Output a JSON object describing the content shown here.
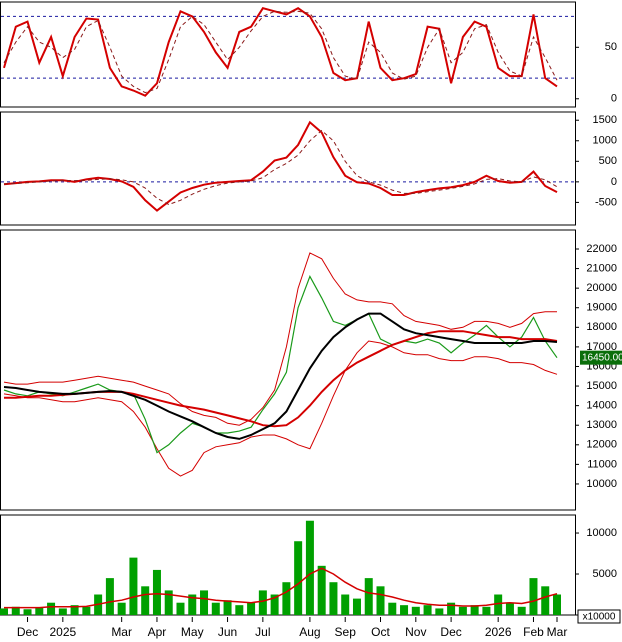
{
  "chart_data": [
    {
      "type": "line",
      "ylim": [
        -8,
        94
      ],
      "yticks": [
        0,
        50
      ],
      "guide_lines": [
        20,
        80
      ],
      "series": [
        {
          "color": "#d40000",
          "width": 2,
          "values": [
            30,
            70,
            75,
            35,
            60,
            22,
            60,
            78,
            77,
            30,
            12,
            8,
            3,
            15,
            55,
            85,
            80,
            65,
            45,
            30,
            65,
            70,
            88,
            85,
            82,
            88,
            80,
            60,
            25,
            18,
            20,
            75,
            30,
            18,
            20,
            24,
            70,
            68,
            15,
            60,
            75,
            70,
            30,
            22,
            22,
            82,
            20,
            12
          ]
        },
        {
          "color": "#8b1a1a",
          "dash": true,
          "width": 1,
          "values": [
            35,
            55,
            70,
            55,
            50,
            40,
            48,
            70,
            76,
            50,
            22,
            12,
            6,
            10,
            38,
            70,
            80,
            72,
            55,
            38,
            50,
            66,
            80,
            85,
            84,
            85,
            83,
            68,
            40,
            22,
            19,
            55,
            45,
            25,
            19,
            22,
            50,
            68,
            35,
            45,
            68,
            72,
            45,
            27,
            22,
            60,
            40,
            18
          ]
        }
      ]
    },
    {
      "type": "line",
      "ylim": [
        -1050,
        1700
      ],
      "yticks": [
        -500,
        0,
        500,
        1000,
        1500
      ],
      "guide_lines": [
        0
      ],
      "series": [
        {
          "color": "#d40000",
          "width": 2,
          "values": [
            -60,
            -30,
            0,
            10,
            40,
            40,
            0,
            60,
            100,
            70,
            10,
            -120,
            -450,
            -700,
            -480,
            -260,
            -150,
            -70,
            -20,
            0,
            20,
            40,
            250,
            520,
            590,
            900,
            1450,
            1200,
            600,
            150,
            -10,
            -40,
            -150,
            -320,
            -320,
            -250,
            -200,
            -160,
            -130,
            -80,
            0,
            150,
            20,
            -20,
            0,
            250,
            -100,
            -250
          ]
        },
        {
          "color": "#8b1a1a",
          "dash": true,
          "width": 1,
          "values": [
            -50,
            -40,
            -20,
            0,
            20,
            35,
            30,
            35,
            60,
            75,
            50,
            0,
            -150,
            -400,
            -550,
            -450,
            -300,
            -180,
            -90,
            -30,
            0,
            20,
            100,
            300,
            450,
            650,
            1000,
            1250,
            1000,
            500,
            150,
            0,
            -80,
            -200,
            -280,
            -280,
            -240,
            -200,
            -160,
            -110,
            -50,
            60,
            80,
            20,
            0,
            120,
            50,
            -120
          ]
        }
      ]
    },
    {
      "type": "line",
      "ylim": [
        8670,
        22970
      ],
      "yticks": [
        10000,
        11000,
        12000,
        13000,
        14000,
        15000,
        16000,
        17000,
        18000,
        19000,
        20000,
        21000,
        22000
      ],
      "last_price": {
        "value": 16450,
        "label": "16450.00"
      },
      "series": [
        {
          "color": "#d40000",
          "width": 1,
          "values": [
            15200,
            15100,
            15100,
            15200,
            15200,
            15200,
            15300,
            15400,
            15500,
            15400,
            15300,
            15200,
            15000,
            14800,
            14600,
            14100,
            13700,
            13500,
            13400,
            13100,
            13000,
            13300,
            13900,
            14800,
            17000,
            20000,
            21800,
            21500,
            20500,
            19700,
            19400,
            19300,
            19300,
            19200,
            18600,
            18300,
            18200,
            18100,
            17900,
            18000,
            18300,
            18300,
            18200,
            18000,
            18200,
            18700,
            18800,
            18800
          ]
        },
        {
          "color": "#d40000",
          "width": 1,
          "values": [
            14600,
            14500,
            14400,
            14400,
            14300,
            14200,
            14200,
            14300,
            14400,
            14300,
            14200,
            13700,
            12900,
            11800,
            10800,
            10400,
            10700,
            11600,
            11900,
            12000,
            12100,
            12400,
            12500,
            12500,
            12300,
            12000,
            11800,
            13100,
            14500,
            15800,
            16700,
            17300,
            17200,
            17000,
            16700,
            16600,
            16600,
            16400,
            16300,
            16300,
            16500,
            16500,
            16400,
            16200,
            16200,
            16100,
            15800,
            15600
          ]
        },
        {
          "color": "#1a9a1a",
          "width": 1.2,
          "values": [
            14800,
            14600,
            14500,
            14700,
            14600,
            14500,
            14700,
            14900,
            15100,
            14800,
            14700,
            14600,
            13300,
            11600,
            12000,
            12600,
            13100,
            12900,
            12600,
            12600,
            12700,
            12900,
            13800,
            14600,
            15700,
            19000,
            20600,
            19500,
            18300,
            18100,
            18400,
            18700,
            17400,
            17100,
            17300,
            17200,
            17400,
            17200,
            16700,
            17200,
            17600,
            18100,
            17500,
            17000,
            17500,
            18500,
            17300,
            16450
          ]
        },
        {
          "color": "#d40000",
          "width": 2,
          "values": [
            14400,
            14400,
            14450,
            14500,
            14500,
            14550,
            14600,
            14650,
            14700,
            14700,
            14700,
            14600,
            14450,
            14300,
            14150,
            14000,
            13900,
            13800,
            13650,
            13500,
            13350,
            13200,
            13000,
            12950,
            13000,
            13400,
            14000,
            14700,
            15300,
            15800,
            16200,
            16500,
            16800,
            17100,
            17300,
            17500,
            17700,
            17800,
            17800,
            17800,
            17700,
            17600,
            17500,
            17500,
            17400,
            17400,
            17400,
            17300
          ]
        },
        {
          "color": "#000000",
          "width": 2,
          "values": [
            14950,
            14900,
            14800,
            14700,
            14650,
            14600,
            14600,
            14650,
            14700,
            14750,
            14700,
            14500,
            14300,
            14000,
            13700,
            13450,
            13200,
            12900,
            12600,
            12400,
            12300,
            12500,
            12800,
            13100,
            13700,
            14800,
            15900,
            16800,
            17500,
            18000,
            18400,
            18700,
            18700,
            18300,
            17900,
            17700,
            17600,
            17500,
            17400,
            17300,
            17200,
            17200,
            17200,
            17200,
            17200,
            17300,
            17300,
            17250
          ]
        }
      ]
    },
    {
      "type": "bar",
      "ylim": [
        0,
        12200
      ],
      "yticks": [
        0,
        5000,
        10000
      ],
      "multiplier_label": "x10000",
      "categories": [
        null,
        null,
        "Dec",
        null,
        null,
        "2025",
        null,
        null,
        null,
        null,
        "Mar",
        null,
        null,
        "Apr",
        null,
        null,
        "May",
        null,
        null,
        "Jun",
        null,
        null,
        "Jul",
        null,
        null,
        null,
        "Aug",
        null,
        null,
        "Sep",
        null,
        null,
        "Oct",
        null,
        null,
        "Nov",
        null,
        null,
        "Dec",
        null,
        null,
        null,
        "2026",
        null,
        null,
        "Feb",
        null,
        "Mar"
      ],
      "series": [
        {
          "color": "#00a000",
          "values": [
            800,
            1000,
            700,
            900,
            1500,
            800,
            1200,
            1000,
            2500,
            4500,
            1500,
            7000,
            3500,
            5500,
            3000,
            1500,
            2500,
            3000,
            1500,
            1800,
            1200,
            1500,
            3000,
            2500,
            4000,
            9000,
            11500,
            6000,
            4000,
            2500,
            2000,
            4500,
            3500,
            1500,
            1200,
            1000,
            1200,
            800,
            1500,
            1000,
            1200,
            1000,
            2500,
            1500,
            1000,
            4500,
            3500,
            2500
          ]
        },
        {
          "color": "#d40000",
          "style": "line",
          "values": [
            900,
            900,
            900,
            900,
            1000,
            1000,
            1000,
            1050,
            1300,
            1600,
            1800,
            2200,
            2500,
            2600,
            2500,
            2300,
            2100,
            2000,
            1800,
            1700,
            1600,
            1500,
            1700,
            2100,
            2800,
            3800,
            5000,
            5700,
            5000,
            4000,
            3200,
            2700,
            2500,
            2200,
            1800,
            1500,
            1300,
            1200,
            1200,
            1100,
            1100,
            1200,
            1400,
            1500,
            1400,
            1700,
            2200,
            2600
          ]
        }
      ]
    }
  ]
}
